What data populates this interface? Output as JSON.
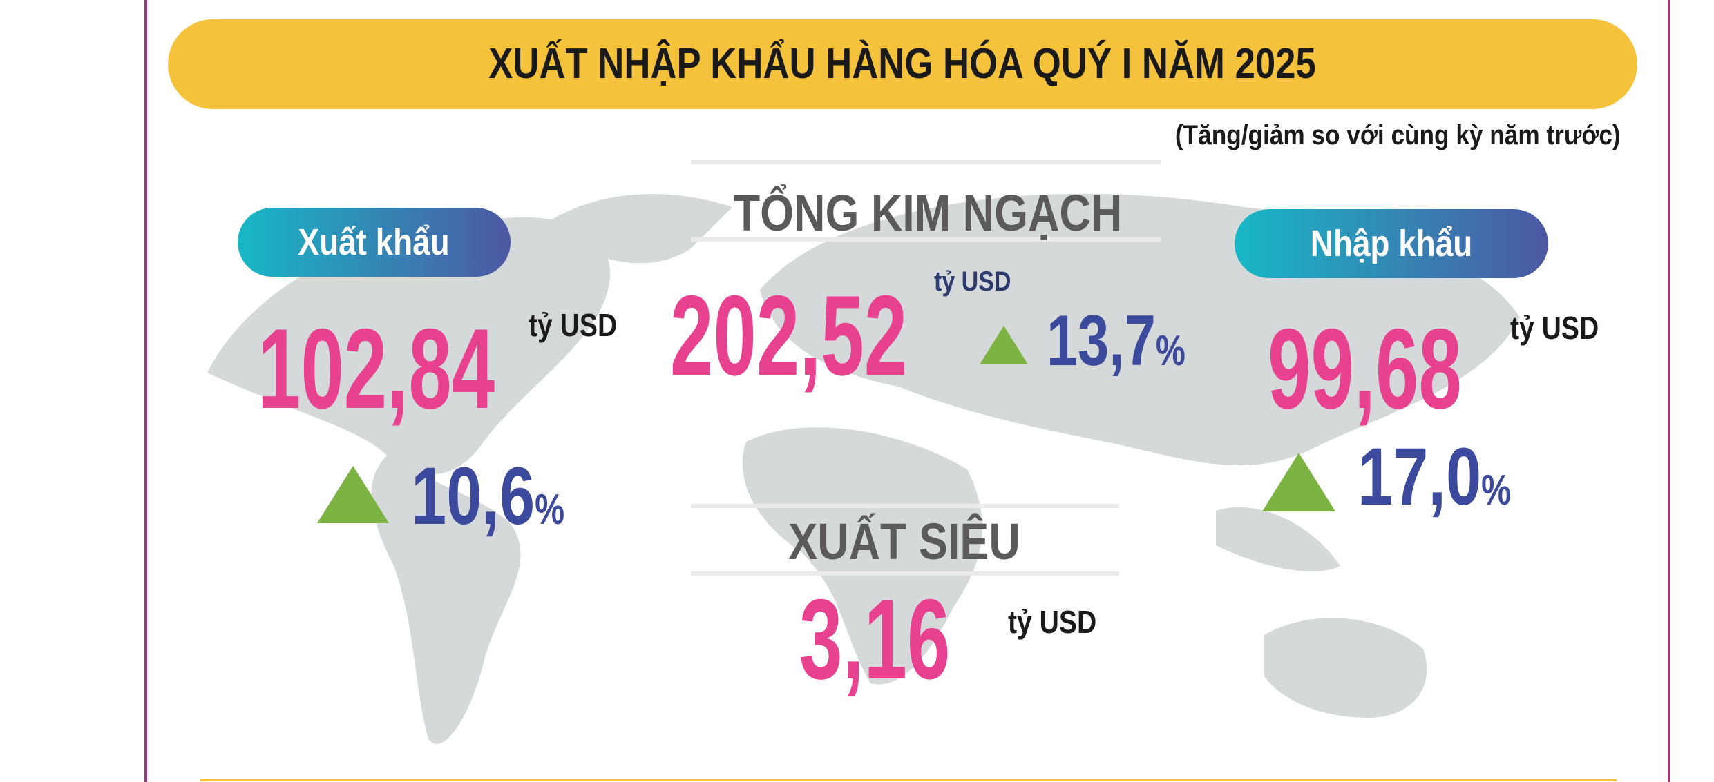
{
  "header": {
    "title": "XUẤT NHẬP KHẨU HÀNG HÓA QUÝ I NĂM 2025",
    "note": "(Tăng/giảm so với cùng kỳ năm trước)"
  },
  "export": {
    "label": "Xuất khẩu",
    "value": "102,84",
    "unit": "tỷ USD",
    "change": "10,6",
    "change_unit": "%"
  },
  "total": {
    "label": "TỔNG KIM NGẠCH",
    "value": "202,52",
    "unit": "tỷ USD",
    "change": "13,7",
    "change_unit": "%"
  },
  "import": {
    "label": "Nhập khẩu",
    "value": "99,68",
    "unit": "tỷ USD",
    "change": "17,0",
    "change_unit": "%"
  },
  "surplus": {
    "label": "XUẤT SIÊU",
    "value": "3,16",
    "unit": "tỷ USD"
  }
}
